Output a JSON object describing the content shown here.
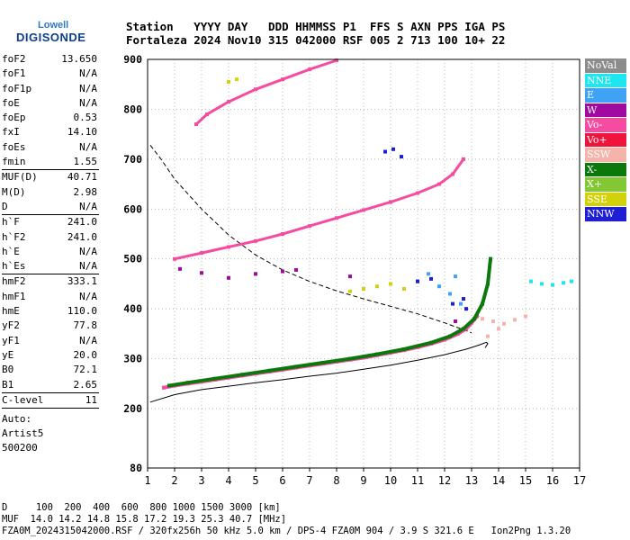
{
  "logo": {
    "sub": "Lowell",
    "main": "DIGISONDE"
  },
  "header": {
    "line1": "Station   YYYY DAY   DDD HHMMSS P1  FFS S AXN PPS IGA PS",
    "line2": "Fortaleza 2024 Nov10 315 042000 RSF 005 2 713 100 10+ 22"
  },
  "params_group1": [
    {
      "k": "foF2",
      "v": "13.650"
    },
    {
      "k": "foF1",
      "v": "N/A"
    },
    {
      "k": "foF1p",
      "v": "N/A"
    },
    {
      "k": "foE",
      "v": "N/A"
    },
    {
      "k": "foEp",
      "v": "0.53"
    },
    {
      "k": "fxI",
      "v": "14.10"
    },
    {
      "k": "foEs",
      "v": "N/A"
    },
    {
      "k": "fmin",
      "v": "1.55"
    }
  ],
  "params_group2": [
    {
      "k": "MUF(D)",
      "v": "40.71"
    },
    {
      "k": "M(D)",
      "v": "2.98"
    },
    {
      "k": "D",
      "v": "N/A"
    }
  ],
  "params_group3": [
    {
      "k": "h`F",
      "v": "241.0"
    },
    {
      "k": "h`F2",
      "v": "241.0"
    },
    {
      "k": "h`E",
      "v": "N/A"
    },
    {
      "k": "h`Es",
      "v": "N/A"
    }
  ],
  "params_group4": [
    {
      "k": "hmF2",
      "v": "333.1"
    },
    {
      "k": "hmF1",
      "v": "N/A"
    },
    {
      "k": "hmE",
      "v": "110.0"
    },
    {
      "k": "yF2",
      "v": "77.8"
    },
    {
      "k": "yF1",
      "v": "N/A"
    },
    {
      "k": "yE",
      "v": "20.0"
    },
    {
      "k": "B0",
      "v": "72.1"
    },
    {
      "k": "B1",
      "v": "2.65"
    }
  ],
  "params_group5": [
    {
      "k": "C-level",
      "v": "11"
    }
  ],
  "auto_lines": [
    "Auto:",
    "Artist5",
    "500200"
  ],
  "legend": [
    {
      "label": "NoVal",
      "color": "#8c8c8c"
    },
    {
      "label": "NNE",
      "color": "#1ee6f0"
    },
    {
      "label": "E",
      "color": "#3fa2f5"
    },
    {
      "label": "W",
      "color": "#a00aa0"
    },
    {
      "label": "Vo-",
      "color": "#f54ba0"
    },
    {
      "label": "Vo+",
      "color": "#f0143c"
    },
    {
      "label": "SSW",
      "color": "#f5b4aa"
    },
    {
      "label": "X-",
      "color": "#0a780a"
    },
    {
      "label": "X+",
      "color": "#82c832"
    },
    {
      "label": "SSE",
      "color": "#d2d20a"
    },
    {
      "label": "NNW",
      "color": "#1e1ed2"
    }
  ],
  "footer": {
    "line1": "D     100  200  400  600  800 1000 1500 3000 [km]",
    "line2": "MUF  14.0 14.2 14.8 15.8 17.2 19.3 25.3 40.7 [MHz]",
    "line3": "FZA0M_2024315042000.RSF / 320fx256h 50 kHz 5.0 km / DPS-4 FZA0M 904 / 3.9 S 321.6 E   Ion2Png 1.3.20"
  },
  "chart_data": {
    "type": "scatter",
    "xlabel": "",
    "ylabel": "",
    "xlim": [
      1,
      17
    ],
    "ylim": [
      80,
      900
    ],
    "x_ticks": [
      1,
      2,
      3,
      4,
      5,
      6,
      7,
      8,
      9,
      10,
      11,
      12,
      13,
      14,
      15,
      16,
      17
    ],
    "y_ticks": [
      80,
      200,
      300,
      400,
      500,
      600,
      700,
      800,
      900
    ],
    "grid": "dotted",
    "series": [
      {
        "name": "Vo-",
        "points": [
          [
            1.6,
            242
          ],
          [
            2,
            246
          ],
          [
            2.5,
            250
          ],
          [
            3,
            254
          ],
          [
            3.5,
            258
          ],
          [
            4,
            262
          ],
          [
            4.5,
            266
          ],
          [
            5,
            270
          ],
          [
            5.5,
            274
          ],
          [
            6,
            278
          ],
          [
            6.5,
            282
          ],
          [
            7,
            286
          ],
          [
            7.5,
            290
          ],
          [
            8,
            294
          ],
          [
            8.5,
            298
          ],
          [
            9,
            302
          ],
          [
            9.5,
            307
          ],
          [
            10,
            312
          ],
          [
            10.5,
            317
          ],
          [
            11,
            323
          ],
          [
            11.5,
            330
          ],
          [
            12,
            338
          ],
          [
            12.5,
            350
          ],
          [
            12.8,
            360
          ],
          [
            13,
            372
          ],
          [
            13.2,
            385
          ]
        ]
      },
      {
        "name": "X-",
        "points": [
          [
            1.8,
            246
          ],
          [
            2.5,
            252
          ],
          [
            3.5,
            260
          ],
          [
            4.5,
            268
          ],
          [
            5.5,
            276
          ],
          [
            6.5,
            284
          ],
          [
            7.5,
            292
          ],
          [
            8.5,
            300
          ],
          [
            9.5,
            309
          ],
          [
            10.5,
            319
          ],
          [
            11.5,
            332
          ],
          [
            12.2,
            345
          ],
          [
            12.7,
            360
          ],
          [
            13.1,
            380
          ],
          [
            13.4,
            410
          ],
          [
            13.6,
            450
          ],
          [
            13.7,
            500
          ]
        ]
      },
      {
        "name": "Vo- (2nd hop)",
        "points": [
          [
            2,
            500
          ],
          [
            3,
            512
          ],
          [
            4,
            524
          ],
          [
            5,
            536
          ],
          [
            6,
            550
          ],
          [
            7,
            566
          ],
          [
            8,
            582
          ],
          [
            9,
            598
          ],
          [
            10,
            614
          ],
          [
            11,
            632
          ],
          [
            11.8,
            650
          ],
          [
            12.3,
            670
          ],
          [
            12.7,
            700
          ]
        ]
      },
      {
        "name": "Vo- (3rd hop)",
        "points": [
          [
            2.8,
            770
          ],
          [
            3.2,
            790
          ],
          [
            4,
            815
          ],
          [
            5,
            840
          ],
          [
            6,
            860
          ],
          [
            7,
            880
          ],
          [
            8,
            898
          ]
        ]
      },
      {
        "name": "NNE",
        "points": [
          [
            15.2,
            455
          ],
          [
            15.6,
            450
          ],
          [
            16,
            448
          ],
          [
            16.4,
            452
          ],
          [
            16.7,
            455
          ]
        ]
      },
      {
        "name": "SSW",
        "points": [
          [
            13.4,
            380
          ],
          [
            13.8,
            375
          ],
          [
            14.2,
            370
          ],
          [
            14.6,
            378
          ],
          [
            15,
            385
          ],
          [
            14,
            360
          ],
          [
            13.6,
            345
          ]
        ]
      },
      {
        "name": "E",
        "points": [
          [
            11,
            455
          ],
          [
            11.4,
            470
          ],
          [
            11.8,
            445
          ],
          [
            12.2,
            430
          ],
          [
            12.6,
            410
          ],
          [
            12.4,
            465
          ]
        ]
      },
      {
        "name": "NNW",
        "points": [
          [
            9.8,
            715
          ],
          [
            10.1,
            720
          ],
          [
            10.4,
            705
          ],
          [
            11,
            455
          ],
          [
            11.5,
            460
          ],
          [
            12.3,
            410
          ],
          [
            12.8,
            400
          ],
          [
            12.7,
            420
          ]
        ]
      },
      {
        "name": "SSE",
        "points": [
          [
            8.5,
            435
          ],
          [
            9,
            440
          ],
          [
            9.5,
            445
          ],
          [
            10,
            450
          ],
          [
            10.5,
            440
          ],
          [
            4,
            855
          ],
          [
            4.3,
            860
          ]
        ]
      },
      {
        "name": "W",
        "points": [
          [
            2.2,
            480
          ],
          [
            3,
            472
          ],
          [
            4,
            462
          ],
          [
            5,
            470
          ],
          [
            6,
            475
          ],
          [
            6.5,
            478
          ],
          [
            8.5,
            465
          ],
          [
            12.4,
            375
          ]
        ]
      }
    ],
    "profile_curve": [
      [
        1.1,
        213
      ],
      [
        2,
        228
      ],
      [
        3,
        238
      ],
      [
        4,
        245
      ],
      [
        5,
        252
      ],
      [
        6,
        258
      ],
      [
        7,
        265
      ],
      [
        8,
        271
      ],
      [
        9,
        279
      ],
      [
        10,
        287
      ],
      [
        11,
        297
      ],
      [
        12,
        308
      ],
      [
        12.8,
        319
      ],
      [
        13.3,
        328
      ],
      [
        13.55,
        333
      ],
      [
        13.6,
        330
      ],
      [
        13.5,
        322
      ]
    ],
    "dashed_curve": [
      [
        1.1,
        728
      ],
      [
        1.5,
        700
      ],
      [
        2,
        660
      ],
      [
        3,
        600
      ],
      [
        4,
        548
      ],
      [
        5,
        508
      ],
      [
        6,
        478
      ],
      [
        7,
        455
      ],
      [
        8,
        436
      ],
      [
        9,
        420
      ],
      [
        10,
        405
      ],
      [
        11,
        390
      ],
      [
        12,
        372
      ],
      [
        13,
        352
      ]
    ]
  }
}
